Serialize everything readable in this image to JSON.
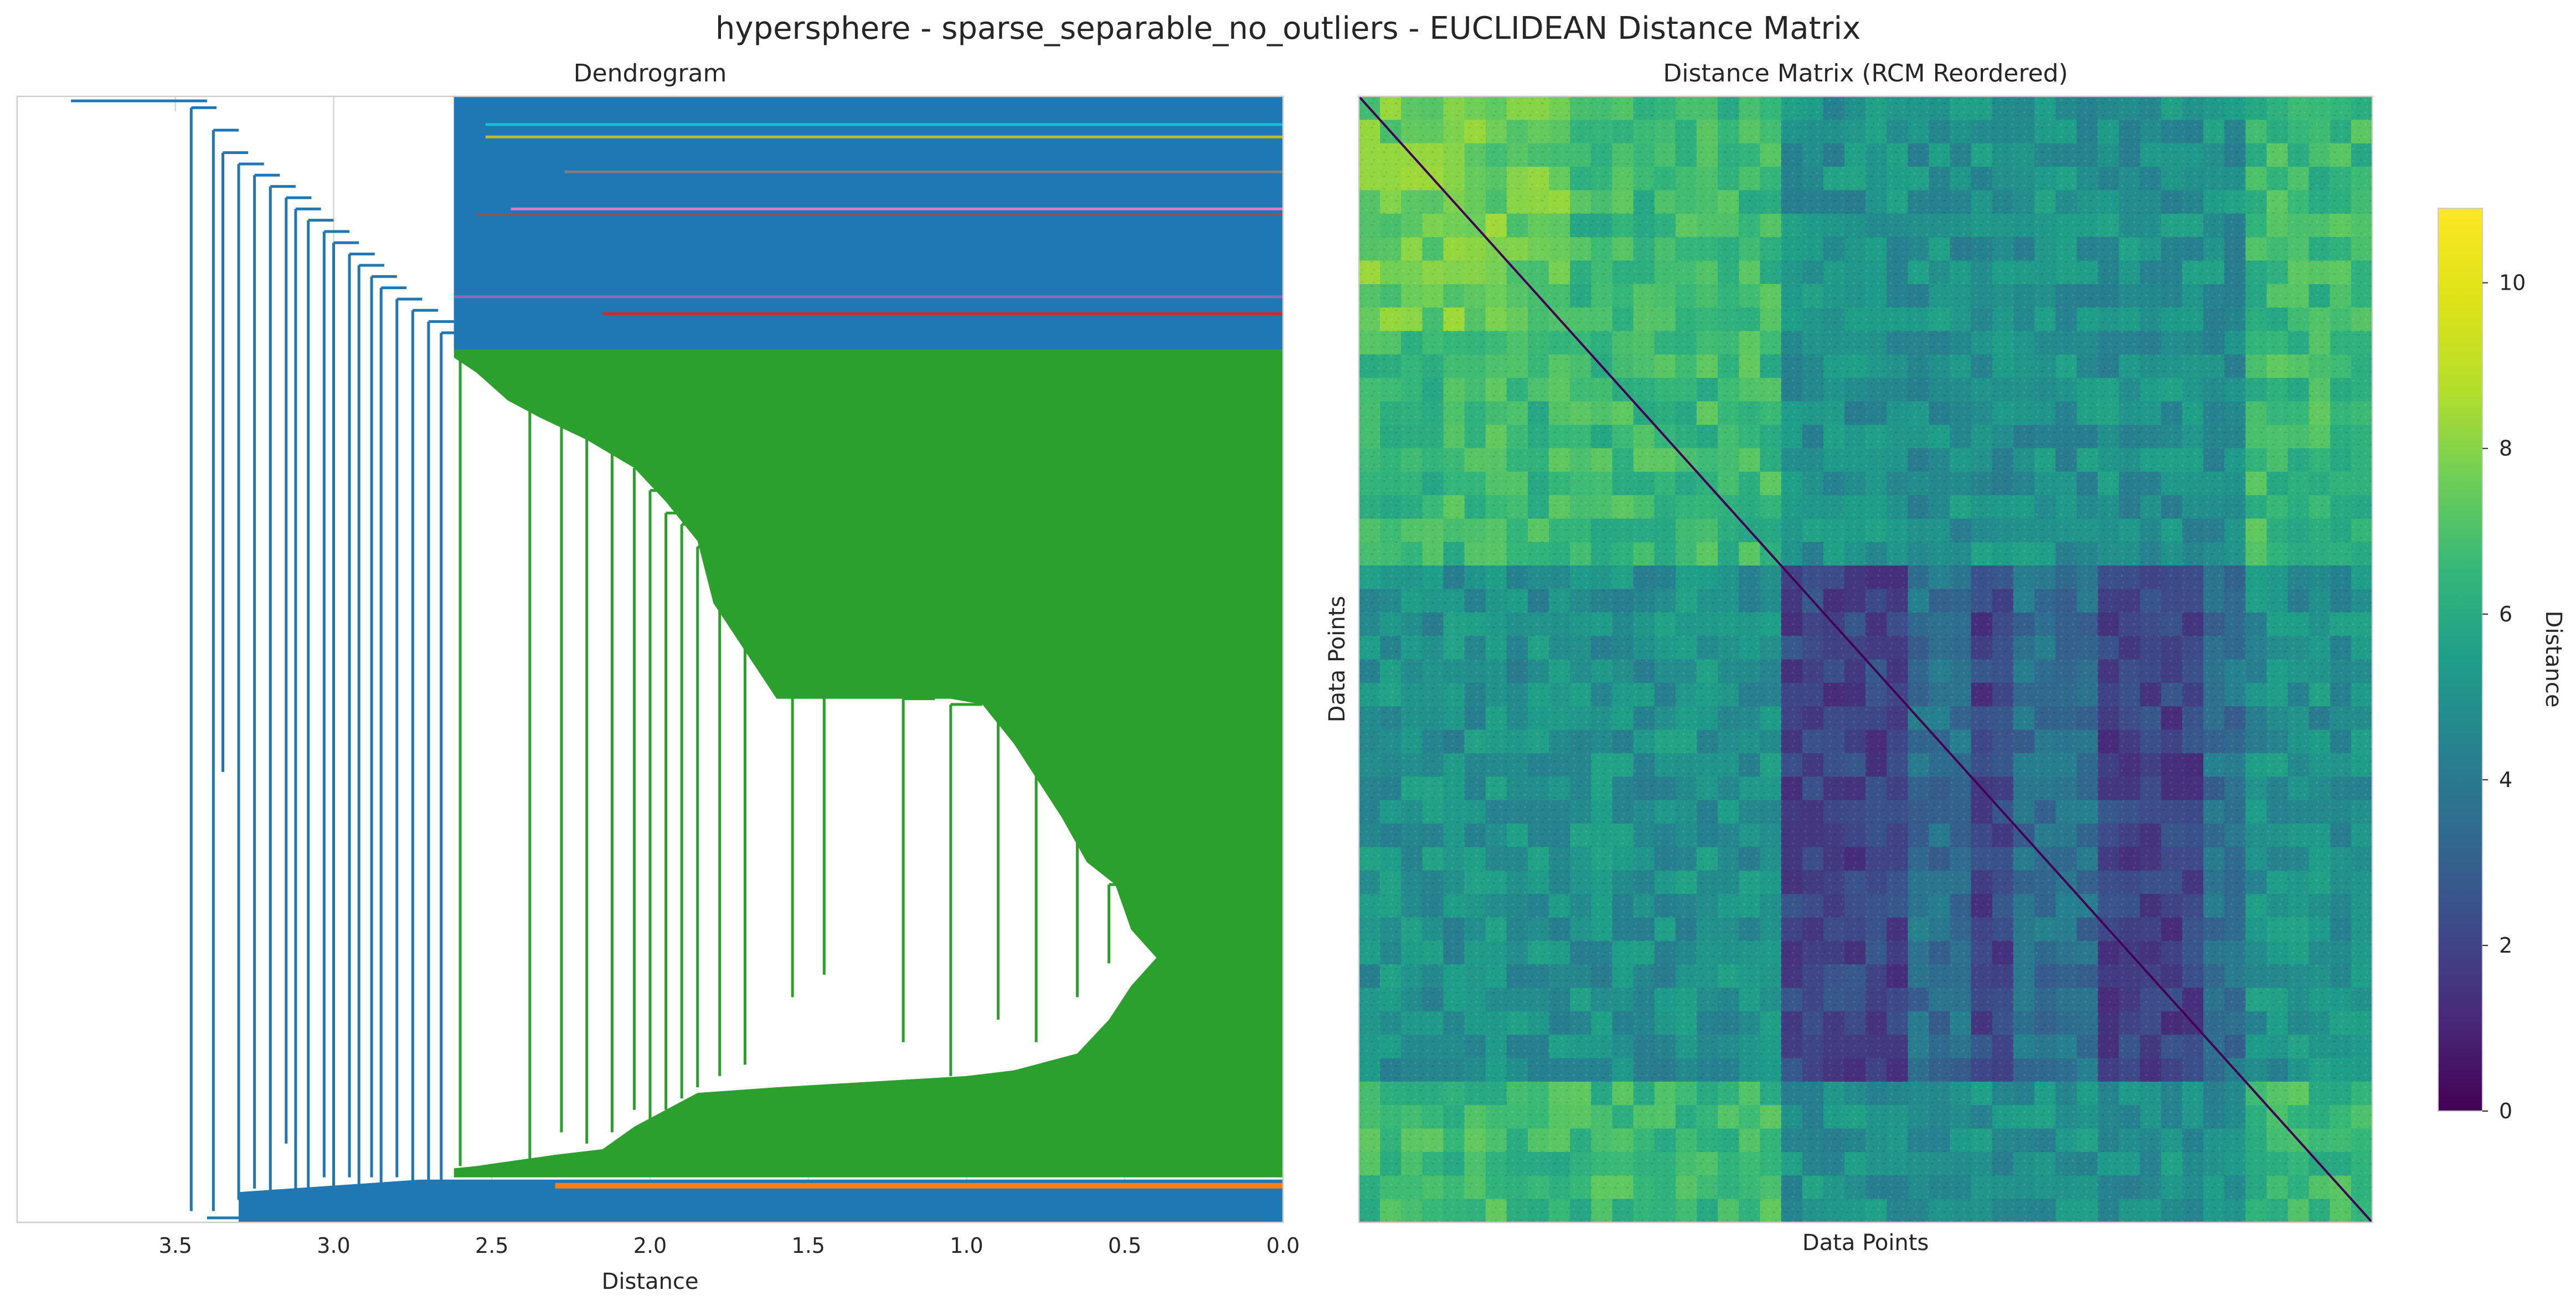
{
  "figure": {
    "suptitle": "hypersphere - sparse_separable_no_outliers - EUCLIDEAN Distance Matrix"
  },
  "chart_data": [
    {
      "type": "dendrogram",
      "title": "Dendrogram",
      "xlabel": "Distance",
      "ylabel": "",
      "xlim": [
        4.0,
        0.0
      ],
      "x_axis_inverted": true,
      "xticks": [
        3.5,
        3.0,
        2.5,
        2.0,
        1.5,
        1.0,
        0.5,
        0.0
      ],
      "xtick_labels": [
        "3.5",
        "3.0",
        "2.5",
        "2.0",
        "1.5",
        "1.0",
        "0.5",
        "0.0"
      ],
      "grid": "vertical",
      "root_merge_distance": 3.83,
      "clusters": [
        {
          "name": "",
          "color": "#2ca02c",
          "merge_distance": 2.62
        },
        {
          "name": "",
          "color": "#ff7f0e",
          "merge_distance": 2.3
        },
        {
          "name": "",
          "color": "#17becf",
          "merge_distance": 2.52
        },
        {
          "name": "",
          "color": "#bcbd22",
          "merge_distance": 2.52
        },
        {
          "name": "",
          "color": "#7f7f7f",
          "merge_distance": 2.27
        },
        {
          "name": "",
          "color": "#e377c2",
          "merge_distance": 2.44
        },
        {
          "name": "",
          "color": "#8c564b",
          "merge_distance": 2.55
        },
        {
          "name": "",
          "color": "#9467bd",
          "merge_distance": 2.62
        },
        {
          "name": "",
          "color": "#d62728",
          "merge_distance": 2.15
        },
        {
          "name": "",
          "color": "#1f77b4",
          "merge_distance": 3.83
        }
      ]
    },
    {
      "type": "heatmap",
      "title": "Distance Matrix (RCM Reordered)",
      "xlabel": "Data Points",
      "ylabel": "Data Points",
      "colormap": "viridis",
      "colorbar_label": "Distance",
      "colorbar_range": [
        0,
        10.9
      ],
      "colorbar_ticks": [
        0,
        2,
        4,
        6,
        8,
        10
      ],
      "colorbar_tick_labels": [
        "0",
        "2",
        "4",
        "6",
        "8",
        "10"
      ],
      "diagonal_value": 0,
      "block_structure": [
        {
          "region": "rows 0-0.41, all columns",
          "typical_distance": 7.2
        },
        {
          "region": "rows 0.41-0.88 x cols 0.41-0.88",
          "typical_distance": 2.6
        },
        {
          "region": "rows 0.41-0.88 x outer cols",
          "typical_distance": 5.0
        },
        {
          "region": "rows 0.88-1.0, all columns",
          "typical_distance": 6.8
        }
      ]
    }
  ]
}
